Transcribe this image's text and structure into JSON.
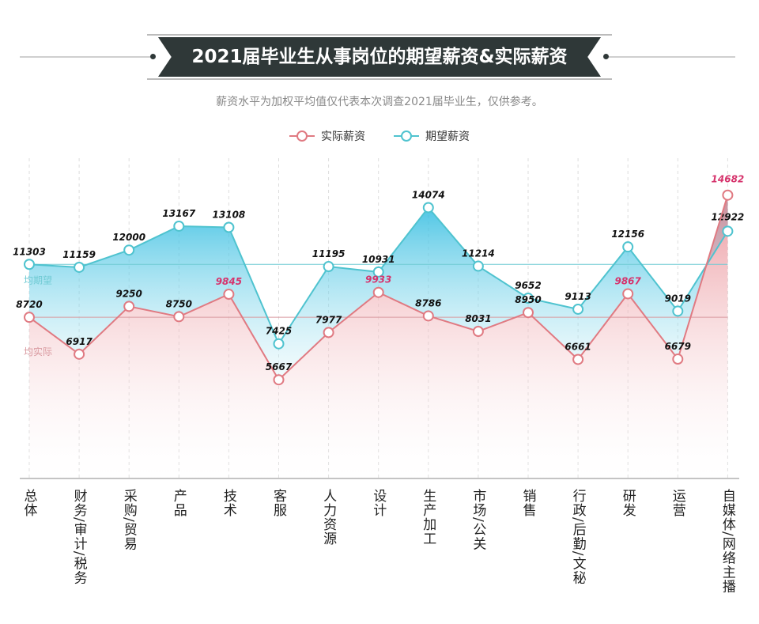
{
  "chart_data": {
    "type": "line",
    "title": "2021届毕业生从事岗位的期望薪资&实际薪资",
    "subtitle": "薪资水平为加权平均值仅代表本次调查2021届毕业生，仅供参考。",
    "categories": [
      "总体",
      "财务/审计/税务",
      "采购/贸易",
      "产品",
      "技术",
      "客服",
      "人力资源",
      "设计",
      "生产加工",
      "市场/公关",
      "销售",
      "行政/后勤/文秘",
      "研发",
      "运营",
      "自媒体/网络主播"
    ],
    "series": [
      {
        "name": "实际薪资",
        "color": "#e07a82",
        "values": [
          8720,
          6917,
          9250,
          8750,
          9845,
          5667,
          7977,
          9933,
          8786,
          8031,
          8950,
          6661,
          9867,
          6679,
          14682
        ],
        "highlighted": [
          9845,
          9933,
          9867,
          14682
        ]
      },
      {
        "name": "期望薪资",
        "color": "#4fc3cf",
        "values": [
          11303,
          11159,
          12000,
          13167,
          13108,
          7425,
          11195,
          10931,
          14074,
          11214,
          9652,
          9113,
          12156,
          9019,
          12922
        ]
      }
    ],
    "reference_lines": [
      {
        "label": "均期望",
        "value": 11303,
        "color": "#6fcad3"
      },
      {
        "label": "均实际",
        "value": 8720,
        "color": "#d99aa0"
      }
    ],
    "highlight_label_color": "#d6336c",
    "legend_position": "top-center",
    "grid": "vertical dashed"
  }
}
